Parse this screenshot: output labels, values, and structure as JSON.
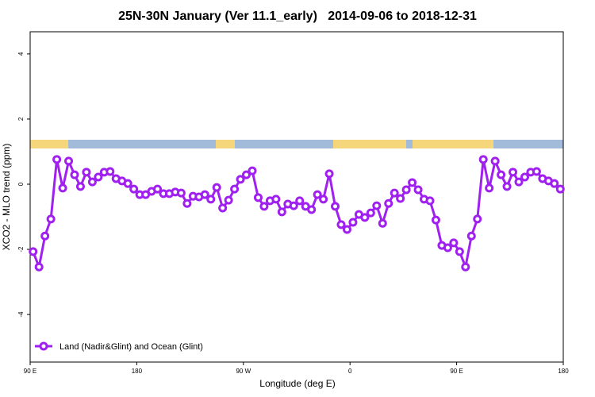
{
  "chart_data": {
    "type": "line",
    "title": "25N-30N January (Ver 11.1_early)   2014-09-06 to 2018-12-31",
    "x_label": "Longitude (deg E)",
    "y_label": "XCO2 - MLO trend (ppm)",
    "x": [
      92.5,
      97.5,
      102.5,
      107.5,
      112.5,
      117.5,
      122.5,
      127.5,
      132.5,
      137.5,
      142.5,
      147.5,
      152.5,
      157.5,
      162.5,
      167.5,
      172.5,
      177.5,
      182.5,
      187.5,
      192.5,
      197.5,
      202.5,
      207.5,
      212.5,
      217.5,
      222.5,
      227.5,
      232.5,
      237.5,
      242.5,
      247.5,
      252.5,
      257.5,
      262.5,
      267.5,
      272.5,
      277.5,
      282.5,
      287.5,
      292.5,
      297.5,
      302.5,
      307.5,
      312.5,
      317.5,
      322.5,
      327.5,
      332.5,
      337.5,
      342.5,
      347.5,
      352.5,
      357.5,
      362.5,
      367.5,
      372.5,
      377.5,
      382.5,
      387.5,
      392.5,
      397.5,
      402.5,
      407.5,
      412.5,
      417.5,
      422.5,
      427.5,
      432.5,
      437.5,
      442.5,
      447.5,
      452.5,
      457.5,
      462.5,
      467.5,
      472.5,
      477.5,
      482.5,
      487.5,
      492.5,
      497.5,
      502.5,
      507.5,
      512.5,
      517.5,
      522.5,
      527.5,
      532.5,
      537.5
    ],
    "series": [
      {
        "name": "Land (Nadir&Glint) and Ocean (Glint)",
        "color": "#a020f0",
        "values": [
          -2.07,
          -2.54,
          -1.59,
          -1.07,
          0.76,
          -0.12,
          0.71,
          0.29,
          -0.07,
          0.37,
          0.07,
          0.22,
          0.37,
          0.39,
          0.17,
          0.1,
          0.02,
          -0.15,
          -0.32,
          -0.32,
          -0.22,
          -0.15,
          -0.29,
          -0.29,
          -0.24,
          -0.27,
          -0.59,
          -0.37,
          -0.39,
          -0.32,
          -0.46,
          -0.1,
          -0.73,
          -0.49,
          -0.15,
          0.15,
          0.29,
          0.41,
          -0.41,
          -0.68,
          -0.51,
          -0.46,
          -0.85,
          -0.61,
          -0.66,
          -0.51,
          -0.68,
          -0.78,
          -0.32,
          -0.46,
          0.32,
          -0.68,
          -1.24,
          -1.39,
          -1.17,
          -0.93,
          -1.02,
          -0.88,
          -0.66,
          -1.2,
          -0.59,
          -0.27,
          -0.44,
          -0.17,
          0.05,
          -0.17,
          -0.46,
          -0.51,
          -1.1,
          -1.88,
          -1.95,
          -1.8,
          -2.07,
          -2.54,
          -1.59,
          -1.07,
          0.76,
          -0.12,
          0.71,
          0.29,
          -0.07,
          0.37,
          0.07,
          0.22,
          0.37,
          0.39,
          0.17,
          0.1,
          0.02,
          -0.15
        ]
      }
    ],
    "xlim": [
      90,
      540
    ],
    "xticks": [
      {
        "value": 90,
        "label": "90 E"
      },
      {
        "value": 180,
        "label": "180"
      },
      {
        "value": 270,
        "label": "90 W"
      },
      {
        "value": 360,
        "label": "0"
      },
      {
        "value": 450,
        "label": "90 E"
      },
      {
        "value": 540,
        "label": "180"
      }
    ],
    "ylim": [
      -5.46,
      4.68
    ],
    "yticks": [
      -4,
      -2,
      0,
      2,
      4
    ],
    "legend": "bottomleft"
  }
}
